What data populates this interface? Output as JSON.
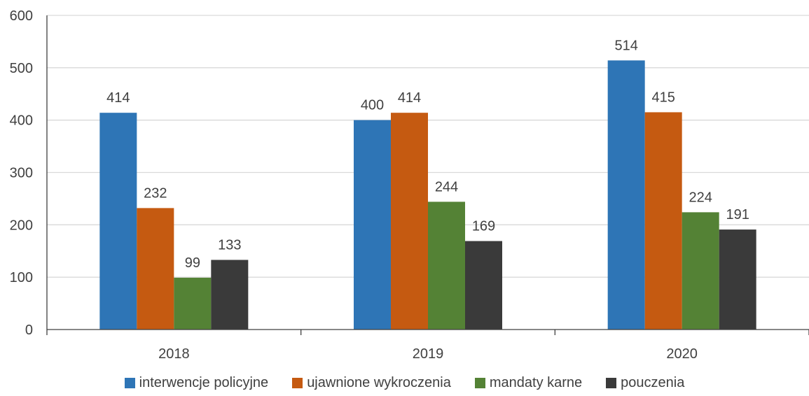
{
  "chart_data": {
    "type": "bar",
    "categories": [
      "2018",
      "2019",
      "2020"
    ],
    "series": [
      {
        "name": "interwencje policyjne",
        "color": "#2E75B6",
        "values": [
          414,
          400,
          514
        ]
      },
      {
        "name": "ujawnione wykroczenia",
        "color": "#C55A11",
        "values": [
          232,
          414,
          415
        ]
      },
      {
        "name": "mandaty karne",
        "color": "#548235",
        "values": [
          99,
          244,
          224
        ]
      },
      {
        "name": "pouczenia",
        "color": "#3A3A3A",
        "values": [
          133,
          169,
          191
        ]
      }
    ],
    "ylim": [
      0,
      600
    ],
    "yticks": [
      "0",
      "100",
      "200",
      "300",
      "400",
      "500",
      "600"
    ],
    "grid": true,
    "legend_position": "bottom"
  }
}
